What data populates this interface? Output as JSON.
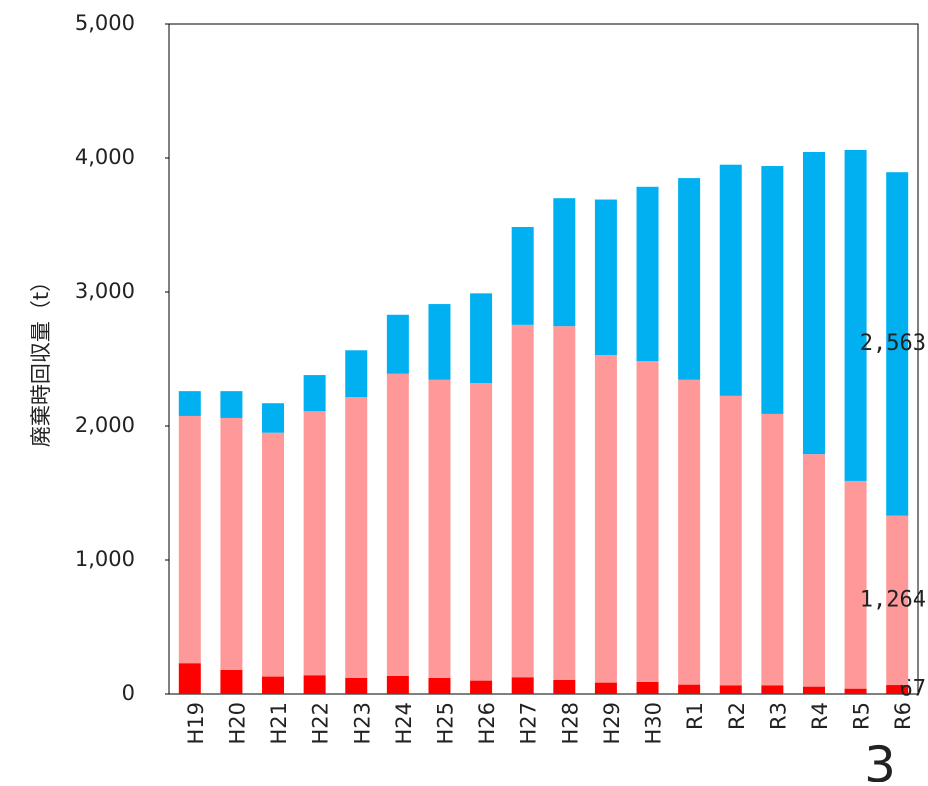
{
  "chart_data": {
    "type": "stacked_bar",
    "y_label": "廃棄時回収量（t）",
    "categories": [
      "H19",
      "H20",
      "H21",
      "H22",
      "H23",
      "H24",
      "H25",
      "H26",
      "H27",
      "H28",
      "H29",
      "H30",
      "R1",
      "R2",
      "R3",
      "R4",
      "R5",
      "R6"
    ],
    "series": [
      {
        "color": "#ff0000",
        "values": [
          230,
          180,
          130,
          140,
          120,
          135,
          120,
          100,
          125,
          105,
          85,
          90,
          70,
          65,
          65,
          55,
          40,
          67
        ],
        "value_labels": [
          null,
          null,
          null,
          null,
          null,
          null,
          null,
          null,
          null,
          null,
          null,
          null,
          null,
          null,
          null,
          null,
          null,
          "67"
        ]
      },
      {
        "color": "#ff9999",
        "values": [
          1845,
          1880,
          1820,
          1970,
          2095,
          2255,
          2225,
          2220,
          2630,
          2640,
          2445,
          2395,
          2275,
          2160,
          2025,
          1735,
          1550,
          1264
        ],
        "value_labels": [
          null,
          null,
          null,
          null,
          null,
          null,
          null,
          null,
          null,
          null,
          null,
          null,
          null,
          null,
          null,
          null,
          null,
          "1,264"
        ]
      },
      {
        "color": "#00b0f0",
        "values": [
          185,
          200,
          220,
          270,
          350,
          440,
          565,
          670,
          730,
          955,
          1160,
          1300,
          1505,
          1725,
          1850,
          2255,
          2470,
          2563
        ],
        "value_labels": [
          null,
          null,
          null,
          null,
          null,
          null,
          null,
          null,
          null,
          null,
          null,
          null,
          null,
          null,
          null,
          null,
          null,
          "2,563"
        ]
      }
    ],
    "ylim": [
      0,
      5000
    ],
    "yticks": [
      0,
      {
        "value": 1000,
        "label": "1,000"
      },
      {
        "value": 2000,
        "label": "2,000"
      },
      {
        "value": 3000,
        "label": "3,000"
      },
      {
        "value": 4000,
        "label": "4,000"
      },
      {
        "value": 5000,
        "label": "5,000"
      }
    ],
    "grid": false,
    "page_number": "3"
  }
}
